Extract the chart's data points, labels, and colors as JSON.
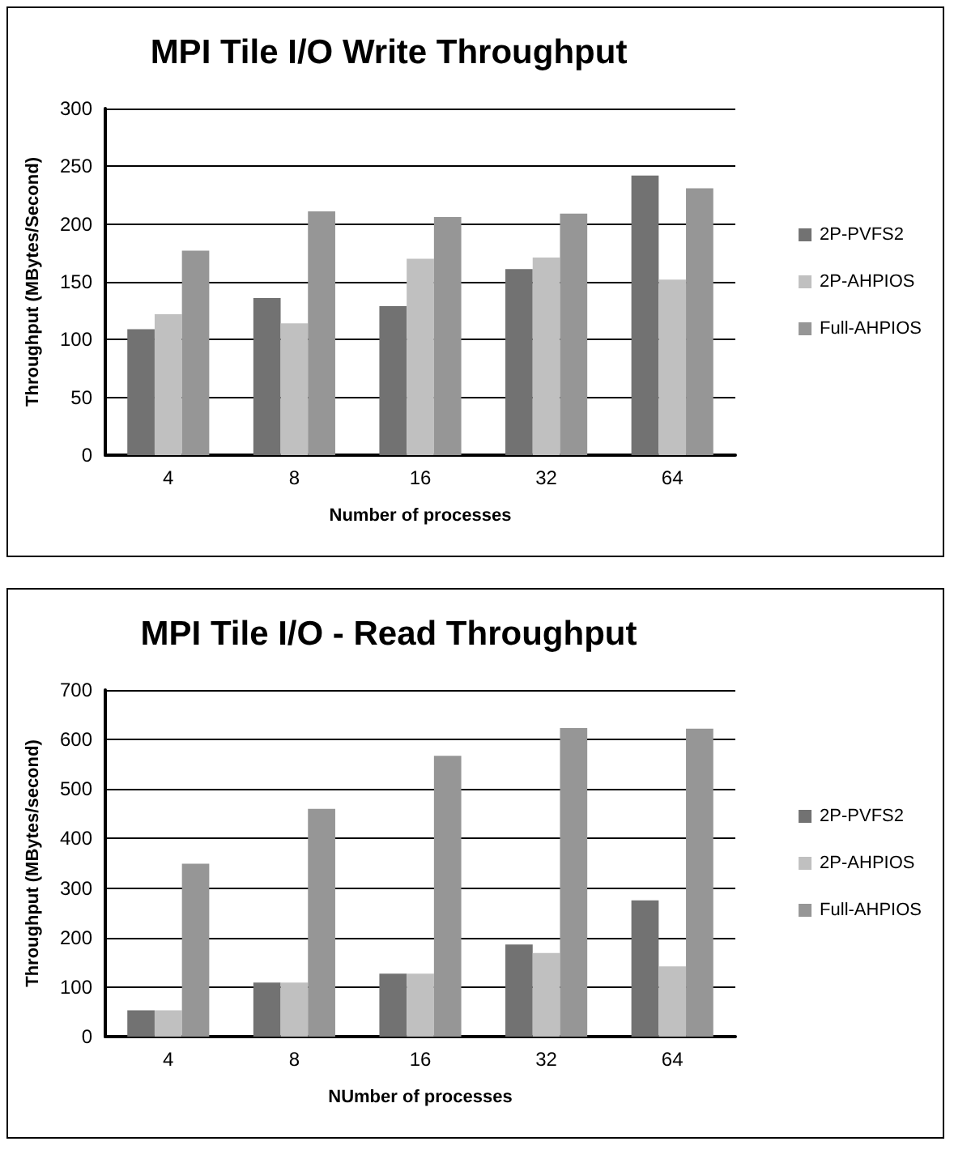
{
  "chart_data": [
    {
      "type": "bar",
      "title": "MPI Tile I/O Write Throughput",
      "xlabel": "Number of processes",
      "ylabel": "Throughput (MBytes/Second)",
      "categories": [
        "4",
        "8",
        "16",
        "32",
        "64"
      ],
      "series": [
        {
          "name": "2P-PVFS2",
          "color": "#727272",
          "values": [
            109,
            136,
            129,
            161,
            242
          ]
        },
        {
          "name": "2P-AHPIOS",
          "color": "#c0c0c0",
          "values": [
            122,
            114,
            170,
            171,
            152
          ]
        },
        {
          "name": "Full-AHPIOS",
          "color": "#969696",
          "values": [
            177,
            211,
            206,
            209,
            231
          ]
        }
      ],
      "ylim": [
        0,
        300
      ],
      "yticks": [
        0,
        50,
        100,
        150,
        200,
        250,
        300
      ],
      "grid": "y",
      "legend": "right"
    },
    {
      "type": "bar",
      "title": "MPI Tile I/O - Read Throughput",
      "xlabel": "NUmber of processes",
      "ylabel": "Throughput (MBytes/second)",
      "categories": [
        "4",
        "8",
        "16",
        "32",
        "64"
      ],
      "series": [
        {
          "name": "2P-PVFS2",
          "color": "#727272",
          "values": [
            53,
            109,
            127,
            186,
            275
          ]
        },
        {
          "name": "2P-AHPIOS",
          "color": "#c0c0c0",
          "values": [
            53,
            109,
            127,
            169,
            142
          ]
        },
        {
          "name": "Full-AHPIOS",
          "color": "#969696",
          "values": [
            349,
            460,
            567,
            623,
            622
          ]
        }
      ],
      "ylim": [
        0,
        700
      ],
      "yticks": [
        0,
        100,
        200,
        300,
        400,
        500,
        600,
        700
      ],
      "grid": "y",
      "legend": "right"
    }
  ]
}
